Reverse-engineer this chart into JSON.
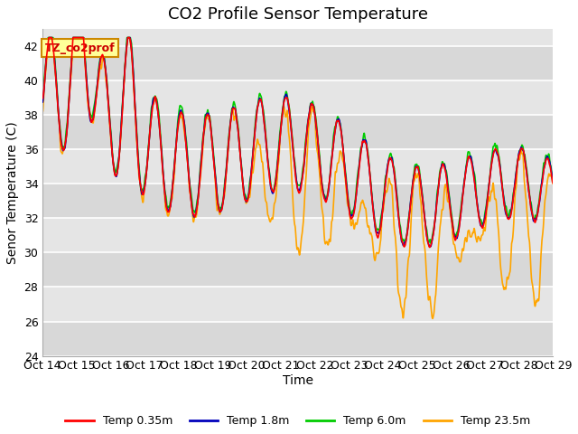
{
  "title": "CO2 Profile Sensor Temperature",
  "ylabel": "Senor Temperature (C)",
  "xlabel": "Time",
  "annotation_text": "TZ_co2prof",
  "annotation_bg": "#FFFF99",
  "annotation_border": "#CC8800",
  "ylim": [
    24,
    43
  ],
  "yticks": [
    24,
    26,
    28,
    30,
    32,
    34,
    36,
    38,
    40,
    42
  ],
  "x_labels": [
    "Oct 14",
    "Oct 15",
    "Oct 16",
    "Oct 17",
    "Oct 18",
    "Oct 19",
    "Oct 20",
    "Oct 21",
    "Oct 22",
    "Oct 23",
    "Oct 24",
    "Oct 25",
    "Oct 26",
    "Oct 27",
    "Oct 28",
    "Oct 29"
  ],
  "series_colors": [
    "#FF0000",
    "#0000BB",
    "#00CC00",
    "#FFA500"
  ],
  "series_labels": [
    "Temp 0.35m",
    "Temp 1.8m",
    "Temp 6.0m",
    "Temp 23.5m"
  ],
  "bg_color": "#FFFFFF",
  "plot_bg_color": "#E5E5E5",
  "grid_color": "#FFFFFF",
  "title_fontsize": 13,
  "label_fontsize": 10,
  "tick_fontsize": 9,
  "line_width": 1.2
}
